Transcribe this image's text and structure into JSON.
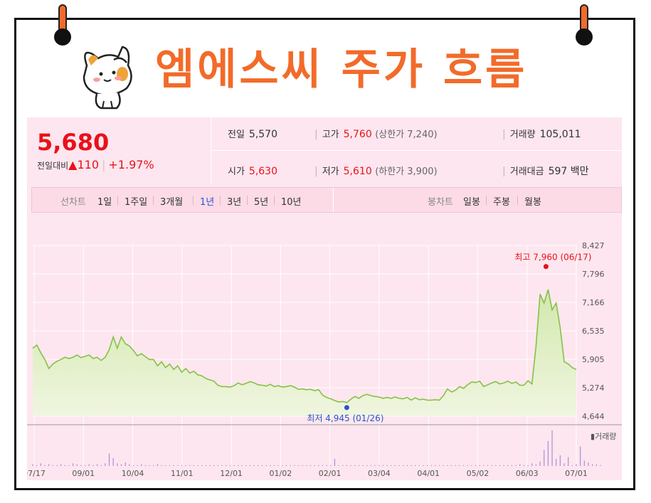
{
  "title": "엠에스씨 주가 흐름",
  "quote": {
    "price": "5,680",
    "change_label": "전일대비",
    "change_arrow": "▲",
    "change": "110",
    "change_pct": "+1.97%",
    "prev_close_label": "전일",
    "prev_close": "5,570",
    "high_label": "고가",
    "high": "5,760",
    "upper_limit": "(상한가 7,240)",
    "volume_label": "거래량",
    "volume": "105,011",
    "open_label": "시가",
    "open": "5,630",
    "low_label": "저가",
    "low": "5,610",
    "lower_limit": "(하한가 3,900)",
    "amount_label": "거래대금",
    "amount": "597",
    "amount_unit": "백만"
  },
  "periods": {
    "line_chart_label": "선차트",
    "items": [
      "1일",
      "1주일",
      "3개월",
      "1년",
      "3년",
      "5년",
      "10년"
    ],
    "active": "1년",
    "candle_chart_label": "봉차트",
    "candle_items": [
      "일봉",
      "주봉",
      "월봉"
    ]
  },
  "chart_data": {
    "type": "area",
    "y_ticks": [
      "8,427",
      "7,796",
      "7,166",
      "6,535",
      "5,905",
      "5,274",
      "4,644"
    ],
    "ylim": [
      4644,
      8427
    ],
    "x_ticks": [
      "07/17",
      "09/01",
      "10/04",
      "11/01",
      "12/01",
      "01/02",
      "02/01",
      "03/04",
      "04/01",
      "05/02",
      "06/03",
      "07/01"
    ],
    "series": [
      {
        "values": [
          6150,
          6220,
          6050,
          5900,
          5700,
          5800,
          5860,
          5900,
          5950,
          5920,
          5950,
          6000,
          5940,
          5970,
          6000,
          5920,
          5950,
          5880,
          5950,
          6120,
          6400,
          6150,
          6400,
          6250,
          6200,
          6100,
          5980,
          6030,
          5960,
          5900,
          5900,
          5760,
          5850,
          5720,
          5800,
          5680,
          5760,
          5620,
          5700,
          5600,
          5640,
          5560,
          5540,
          5480,
          5450,
          5420,
          5330,
          5300,
          5300,
          5290,
          5320,
          5380,
          5340,
          5370,
          5410,
          5380,
          5340,
          5330,
          5310,
          5350,
          5300,
          5320,
          5290,
          5300,
          5320,
          5290,
          5240,
          5250,
          5230,
          5240,
          5210,
          5230,
          5110,
          5060,
          5030,
          4990,
          4960,
          4970,
          4945,
          5020,
          5080,
          5040,
          5100,
          5130,
          5100,
          5080,
          5070,
          5040,
          5060,
          5040,
          5070,
          5040,
          5030,
          5060,
          5000,
          5050,
          5010,
          5020,
          5000,
          5000,
          5010,
          5000,
          5100,
          5250,
          5180,
          5220,
          5300,
          5260,
          5340,
          5400,
          5390,
          5420,
          5300,
          5340,
          5380,
          5410,
          5360,
          5380,
          5420,
          5370,
          5400,
          5330,
          5330,
          5430,
          5360,
          6200,
          7350,
          7150,
          7450,
          7000,
          7150,
          6600,
          5850,
          5800,
          5720,
          5680
        ]
      }
    ],
    "annotations": {
      "high": {
        "text": "최고 7,960 (06/17)",
        "value": 7960
      },
      "low": {
        "text": "최저 4,945 (01/26)",
        "value": 4945
      }
    },
    "volume_label": "▮거래량",
    "volume": [
      2,
      1,
      3,
      1,
      2,
      1,
      1,
      2,
      1,
      1,
      3,
      2,
      1,
      1,
      2,
      1,
      2,
      1,
      3,
      14,
      9,
      3,
      2,
      4,
      2,
      1,
      1,
      2,
      1,
      1,
      1,
      2,
      1,
      1,
      1,
      1,
      1,
      1,
      1,
      1,
      1,
      1,
      1,
      1,
      1,
      1,
      1,
      1,
      1,
      1,
      1,
      1,
      1,
      1,
      1,
      1,
      1,
      1,
      1,
      1,
      1,
      1,
      1,
      1,
      1,
      1,
      1,
      1,
      1,
      1,
      1,
      1,
      1,
      1,
      1,
      8,
      1,
      1,
      1,
      1,
      1,
      1,
      1,
      1,
      1,
      1,
      1,
      1,
      1,
      1,
      1,
      1,
      1,
      1,
      1,
      1,
      1,
      1,
      1,
      1,
      1,
      1,
      1,
      1,
      1,
      1,
      1,
      1,
      1,
      1,
      1,
      1,
      1,
      1,
      1,
      1,
      1,
      1,
      1,
      1,
      1,
      2,
      1,
      1,
      3,
      2,
      5,
      18,
      28,
      40,
      8,
      12,
      3,
      10,
      1,
      2,
      22,
      6,
      4,
      2,
      2,
      1
    ]
  }
}
